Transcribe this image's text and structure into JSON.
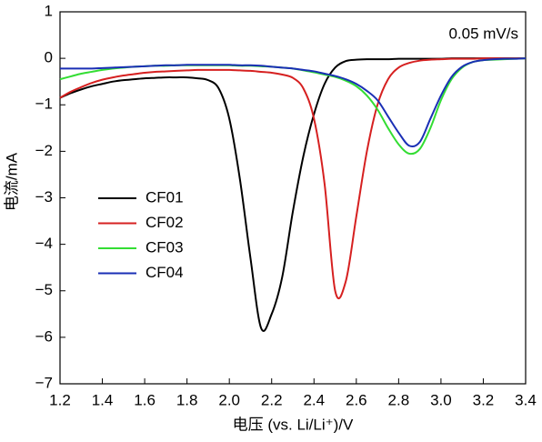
{
  "chart_data": {
    "type": "line",
    "x_label": "电压 (vs. Li/Li⁺)/V",
    "y_label": "电流/mA",
    "annotation": "0.05 mV/s",
    "legend": "left",
    "x": [
      1.2,
      1.25,
      1.3,
      1.35,
      1.4,
      1.45,
      1.5,
      1.55,
      1.6,
      1.65,
      1.7,
      1.75,
      1.8,
      1.85,
      1.9,
      1.95,
      2.0,
      2.05,
      2.1,
      2.15,
      2.2,
      2.25,
      2.3,
      2.35,
      2.4,
      2.45,
      2.5,
      2.55,
      2.6,
      2.65,
      2.7,
      2.75,
      2.8,
      2.85,
      2.9,
      2.95,
      3.0,
      3.05,
      3.1,
      3.15,
      3.2,
      3.25,
      3.3,
      3.35,
      3.4
    ],
    "series": [
      {
        "name": "CF01",
        "color": "#000000",
        "values": [
          -0.85,
          -0.75,
          -0.67,
          -0.6,
          -0.55,
          -0.5,
          -0.47,
          -0.45,
          -0.43,
          -0.42,
          -0.41,
          -0.41,
          -0.41,
          -0.43,
          -0.47,
          -0.65,
          -1.3,
          -2.6,
          -4.3,
          -5.8,
          -5.5,
          -4.7,
          -3.3,
          -2.1,
          -1.2,
          -0.55,
          -0.2,
          -0.06,
          -0.03,
          -0.02,
          -0.02,
          -0.02,
          -0.01,
          -0.01,
          -0.01,
          -0.01,
          -0.01,
          0,
          0,
          0,
          0,
          0,
          0,
          0,
          0
        ]
      },
      {
        "name": "CF02",
        "color": "#d62020",
        "values": [
          -0.85,
          -0.72,
          -0.62,
          -0.53,
          -0.46,
          -0.41,
          -0.37,
          -0.34,
          -0.31,
          -0.29,
          -0.28,
          -0.27,
          -0.26,
          -0.25,
          -0.25,
          -0.25,
          -0.25,
          -0.26,
          -0.27,
          -0.29,
          -0.31,
          -0.35,
          -0.42,
          -0.65,
          -1.3,
          -2.7,
          -5.0,
          -4.8,
          -3.4,
          -2.0,
          -1.0,
          -0.45,
          -0.2,
          -0.1,
          -0.05,
          -0.03,
          -0.02,
          -0.01,
          -0.01,
          -0.01,
          0,
          0,
          0,
          0,
          0
        ]
      },
      {
        "name": "CF03",
        "color": "#33dd33",
        "values": [
          -0.45,
          -0.39,
          -0.33,
          -0.29,
          -0.25,
          -0.22,
          -0.2,
          -0.18,
          -0.17,
          -0.16,
          -0.16,
          -0.15,
          -0.15,
          -0.15,
          -0.15,
          -0.15,
          -0.15,
          -0.16,
          -0.16,
          -0.17,
          -0.18,
          -0.2,
          -0.22,
          -0.26,
          -0.3,
          -0.35,
          -0.4,
          -0.48,
          -0.6,
          -0.8,
          -1.1,
          -1.5,
          -1.85,
          -2.05,
          -1.95,
          -1.5,
          -0.9,
          -0.45,
          -0.2,
          -0.08,
          -0.04,
          -0.03,
          -0.02,
          -0.01,
          0
        ]
      },
      {
        "name": "CF04",
        "color": "#1a2fb5",
        "values": [
          -0.22,
          -0.22,
          -0.22,
          -0.22,
          -0.21,
          -0.2,
          -0.19,
          -0.18,
          -0.17,
          -0.16,
          -0.15,
          -0.15,
          -0.14,
          -0.14,
          -0.14,
          -0.14,
          -0.14,
          -0.15,
          -0.15,
          -0.16,
          -0.18,
          -0.2,
          -0.22,
          -0.25,
          -0.28,
          -0.33,
          -0.38,
          -0.45,
          -0.55,
          -0.7,
          -0.9,
          -1.25,
          -1.6,
          -1.88,
          -1.8,
          -1.3,
          -0.8,
          -0.4,
          -0.18,
          -0.08,
          -0.04,
          -0.02,
          -0.01,
          -0.01,
          0
        ]
      }
    ],
    "xlim": [
      1.2,
      3.4
    ],
    "xticks": [
      1.2,
      1.4,
      1.6,
      1.8,
      {
        "value": 2,
        "label": "2.0"
      },
      2.2,
      2.4,
      2.6,
      2.8,
      {
        "value": 3,
        "label": "3.0"
      },
      3.2,
      3.4
    ],
    "ylim": [
      -7,
      1
    ],
    "yticks": [
      1,
      0,
      {
        "value": -1,
        "label": "−1"
      },
      {
        "value": -2,
        "label": "−2"
      },
      {
        "value": -3,
        "label": "−3"
      },
      {
        "value": -4,
        "label": "−4"
      },
      {
        "value": -5,
        "label": "−5"
      },
      {
        "value": -6,
        "label": "−6"
      },
      {
        "value": -7,
        "label": "−7"
      }
    ]
  }
}
